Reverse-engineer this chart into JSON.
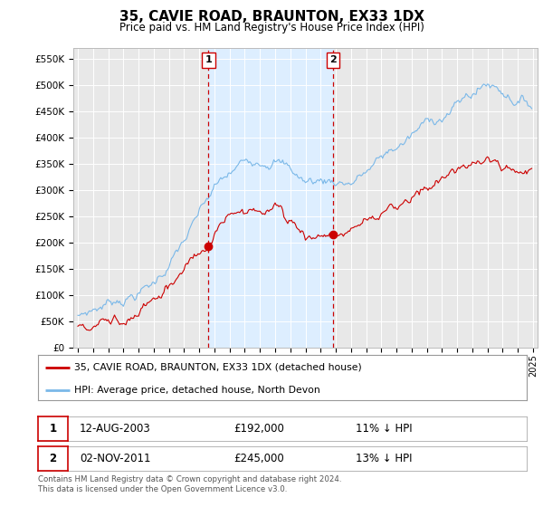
{
  "title": "35, CAVIE ROAD, BRAUNTON, EX33 1DX",
  "subtitle": "Price paid vs. HM Land Registry's House Price Index (HPI)",
  "ylabel_ticks": [
    "£0",
    "£50K",
    "£100K",
    "£150K",
    "£200K",
    "£250K",
    "£300K",
    "£350K",
    "£400K",
    "£450K",
    "£500K",
    "£550K"
  ],
  "ytick_vals": [
    0,
    50000,
    100000,
    150000,
    200000,
    250000,
    300000,
    350000,
    400000,
    450000,
    500000,
    550000
  ],
  "ylim": [
    0,
    570000
  ],
  "xlim_start": 1994.7,
  "xlim_end": 2025.3,
  "hpi_color": "#7ab8e8",
  "price_color": "#cc0000",
  "transaction1_year": 2003.617,
  "transaction1_price": 192000,
  "transaction2_year": 2011.836,
  "transaction2_price": 245000,
  "transaction1_label": "1",
  "transaction2_label": "2",
  "vline_color": "#cc0000",
  "shade_color": "#ddeeff",
  "legend_line1": "35, CAVIE ROAD, BRAUNTON, EX33 1DX (detached house)",
  "legend_line2": "HPI: Average price, detached house, North Devon",
  "table_row1_num": "1",
  "table_row1_date": "12-AUG-2003",
  "table_row1_price": "£192,000",
  "table_row1_hpi": "11% ↓ HPI",
  "table_row2_num": "2",
  "table_row2_date": "02-NOV-2011",
  "table_row2_price": "£245,000",
  "table_row2_hpi": "13% ↓ HPI",
  "footer": "Contains HM Land Registry data © Crown copyright and database right 2024.\nThis data is licensed under the Open Government Licence v3.0.",
  "bg_color": "#ffffff",
  "plot_bg_color": "#e8e8e8",
  "grid_color": "#ffffff"
}
